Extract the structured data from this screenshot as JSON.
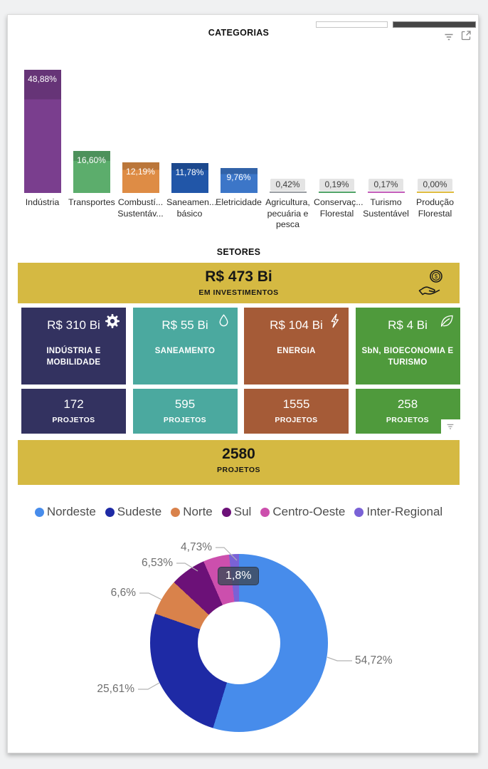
{
  "titles": {
    "categorias": "CATEGORIAS",
    "setores": "SETORES"
  },
  "chart_data": [
    {
      "type": "bar",
      "title": "CATEGORIAS",
      "categories": [
        "Indústria",
        "Transportes",
        "Combustí... Sustentáv...",
        "Saneamen... básico",
        "Eletricidade",
        "Agricultura, pecuária e pesca",
        "Conservaç... Florestal",
        "Turismo Sustentável",
        "Produção Florestal"
      ],
      "values": [
        48.88,
        16.6,
        12.19,
        11.78,
        9.76,
        0.42,
        0.19,
        0.17,
        0.0
      ],
      "labels": [
        "48,88%",
        "16,60%",
        "12,19%",
        "11,78%",
        "9,76%",
        "0,42%",
        "0,19%",
        "0,17%",
        "0,00%"
      ],
      "colors": [
        "#7a3e8e",
        "#5cad6c",
        "#de8c45",
        "#2156a8",
        "#3c76c8",
        "#9fa3a8",
        "#52a86a",
        "#c95fc0",
        "#e5c13f"
      ],
      "ylabel": "",
      "xlabel": "",
      "ylim": [
        0,
        50
      ],
      "grid": false,
      "data_label_format": "percent-comma"
    },
    {
      "type": "donut",
      "categories": [
        "Nordeste",
        "Sudeste",
        "Norte",
        "Sul",
        "Centro-Oeste",
        "Inter-Regional"
      ],
      "values": [
        54.72,
        25.61,
        6.6,
        6.53,
        4.73,
        1.8
      ],
      "labels": [
        "54,72%",
        "25,61%",
        "6,6%",
        "6,53%",
        "4,73%",
        "1,8%"
      ],
      "colors": [
        "#478ceb",
        "#1e2aa5",
        "#d9824b",
        "#6c1178",
        "#cc4fad",
        "#7a62d6"
      ],
      "legend_position": "top",
      "tooltip": {
        "label": "1,8%"
      }
    }
  ],
  "setores": {
    "total_investment": {
      "value": "R$ 473 Bi",
      "label": "EM INVESTIMENTOS",
      "color": "#d5b942",
      "icon": "coin-hand-icon"
    },
    "sectors": [
      {
        "value": "R$ 310 Bi",
        "name": "INDÚSTRIA E MOBILIDADE",
        "projects": "172",
        "icon": "gear-icon",
        "color": "#333260"
      },
      {
        "value": "R$ 55 Bi",
        "name": "SANEAMENTO",
        "projects": "595",
        "icon": "droplet-icon",
        "color": "#4ba99f"
      },
      {
        "value": "R$ 104 Bi",
        "name": "ENERGIA",
        "projects": "1555",
        "icon": "lightning-icon",
        "color": "#a55b37"
      },
      {
        "value": "R$ 4 Bi",
        "name": "SbN, BIOECONOMIA E TURISMO",
        "projects": "258",
        "icon": "leaf-icon",
        "color": "#4f9a3c"
      }
    ],
    "projects_label": "PROJETOS",
    "total_projects": {
      "value": "2580",
      "label": "PROJETOS",
      "color": "#d5b942"
    }
  }
}
